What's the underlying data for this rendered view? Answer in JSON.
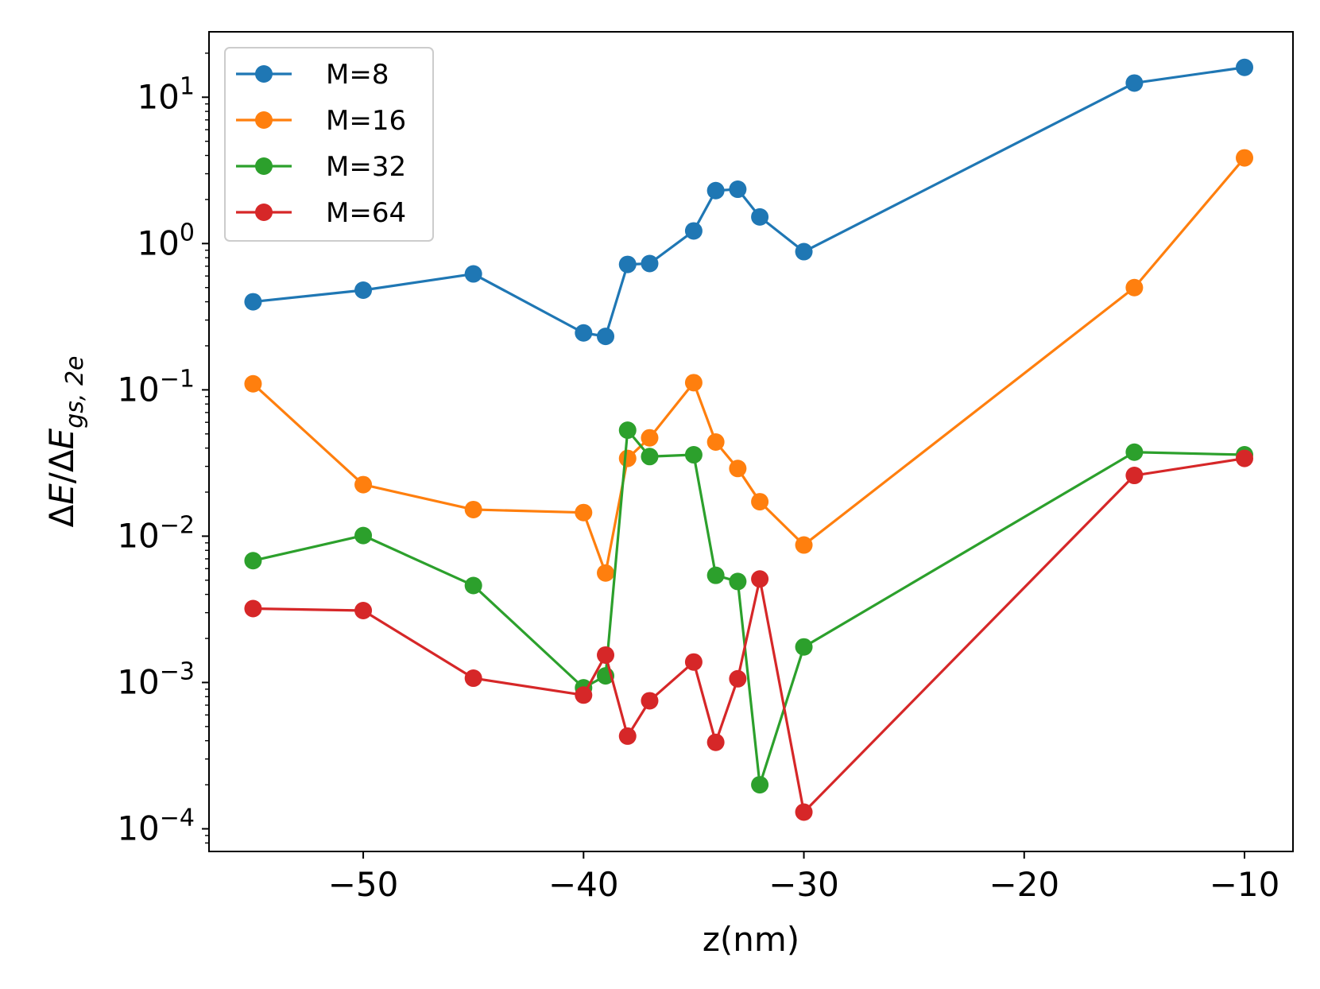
{
  "chart_data": {
    "type": "line",
    "title": "",
    "xlabel": "z(nm)",
    "ylabel": "ΔE/ΔE_{gs,2e}",
    "ylabel_parts": {
      "main": "ΔE/ΔE",
      "sub": "gs, 2e"
    },
    "yscale": "log",
    "xlim": [
      -57.0,
      -7.8
    ],
    "ylim": [
      7e-05,
      28
    ],
    "x_ticks": [
      -50,
      -40,
      -30,
      -20,
      -10
    ],
    "x_tick_labels": [
      "−50",
      "−40",
      "−30",
      "−20",
      "−10"
    ],
    "y_ticks": [
      0.0001,
      0.001,
      0.01,
      0.1,
      1,
      10
    ],
    "y_tick_labels": [
      {
        "base": "10",
        "exp": "−4"
      },
      {
        "base": "10",
        "exp": "−3"
      },
      {
        "base": "10",
        "exp": "−2"
      },
      {
        "base": "10",
        "exp": "−1"
      },
      {
        "base": "10",
        "exp": "0"
      },
      {
        "base": "10",
        "exp": "1"
      }
    ],
    "grid": false,
    "legend_position": "upper-left",
    "series": [
      {
        "name": "M=8",
        "color": "#1f77b4",
        "x": [
          -55,
          -50,
          -45,
          -40,
          -39,
          -38,
          -37,
          -35,
          -34,
          -33,
          -32,
          -30,
          -15,
          -10
        ],
        "y": [
          0.4,
          0.48,
          0.62,
          0.245,
          0.232,
          0.72,
          0.73,
          1.22,
          2.3,
          2.35,
          1.52,
          0.88,
          12.5,
          16.0
        ]
      },
      {
        "name": "M=16",
        "color": "#ff7f0e",
        "x": [
          -55,
          -50,
          -45,
          -40,
          -39,
          -38,
          -37,
          -35,
          -34,
          -33,
          -32,
          -30,
          -15,
          -10
        ],
        "y": [
          0.11,
          0.0225,
          0.0152,
          0.0145,
          0.0056,
          0.034,
          0.047,
          0.112,
          0.044,
          0.029,
          0.0172,
          0.0087,
          0.5,
          3.85
        ]
      },
      {
        "name": "M=32",
        "color": "#2ca02c",
        "x": [
          -55,
          -50,
          -45,
          -40,
          -39,
          -38,
          -37,
          -35,
          -34,
          -33,
          -32,
          -30,
          -15,
          -10
        ],
        "y": [
          0.0068,
          0.0101,
          0.0046,
          0.00092,
          0.00111,
          0.053,
          0.035,
          0.036,
          0.0054,
          0.0049,
          0.0002,
          0.00175,
          0.0375,
          0.036
        ]
      },
      {
        "name": "M=64",
        "color": "#d62728",
        "x": [
          -55,
          -50,
          -45,
          -40,
          -39,
          -38,
          -37,
          -35,
          -34,
          -33,
          -32,
          -30,
          -15,
          -10
        ],
        "y": [
          0.0032,
          0.0031,
          0.00107,
          0.00082,
          0.00154,
          0.00043,
          0.00075,
          0.00138,
          0.00039,
          0.00106,
          0.0051,
          0.00013,
          0.026,
          0.034
        ]
      }
    ]
  }
}
